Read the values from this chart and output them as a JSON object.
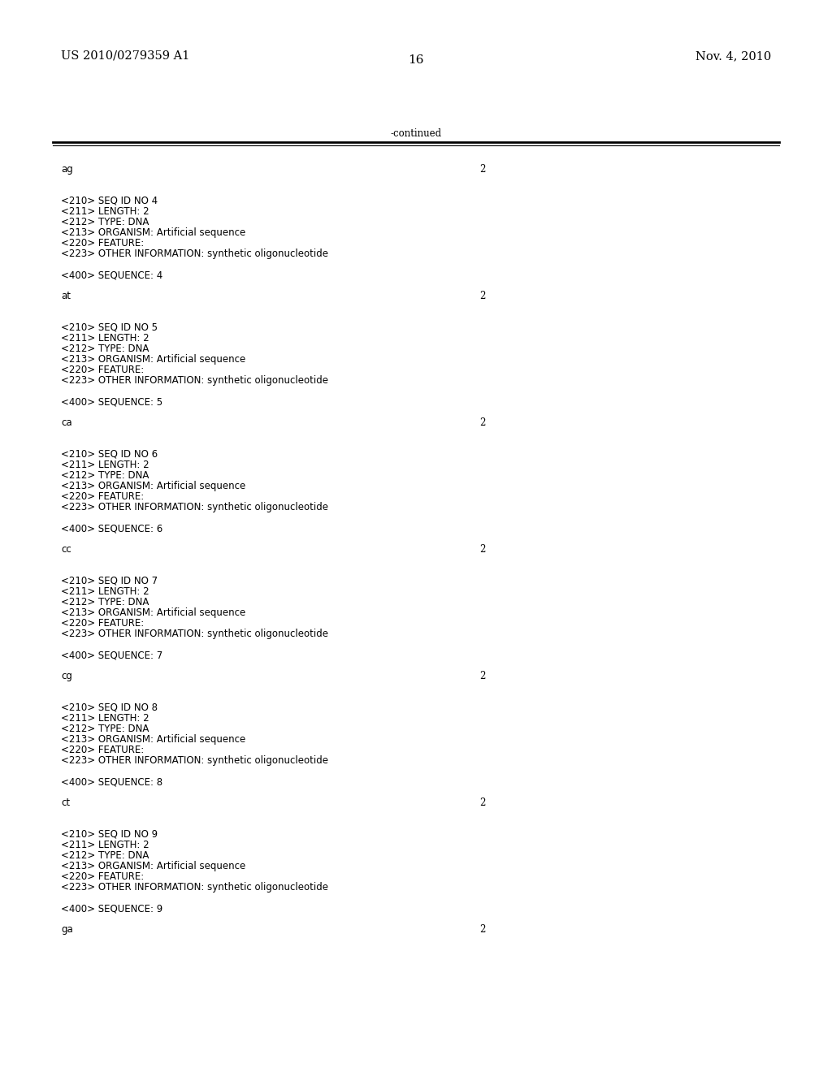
{
  "header_left": "US 2010/0279359 A1",
  "header_right": "Nov. 4, 2010",
  "page_number": "16",
  "continued_label": "-continued",
  "background_color": "#ffffff",
  "text_color": "#000000",
  "font_size_header": 10.5,
  "font_size_body": 8.5,
  "font_size_page": 11,
  "content": [
    {
      "text": "ag",
      "type": "sequence",
      "num": "2"
    },
    {
      "text": "",
      "type": "blank"
    },
    {
      "text": "",
      "type": "blank"
    },
    {
      "text": "<210> SEQ ID NO 4",
      "type": "meta"
    },
    {
      "text": "<211> LENGTH: 2",
      "type": "meta"
    },
    {
      "text": "<212> TYPE: DNA",
      "type": "meta"
    },
    {
      "text": "<213> ORGANISM: Artificial sequence",
      "type": "meta"
    },
    {
      "text": "<220> FEATURE:",
      "type": "meta"
    },
    {
      "text": "<223> OTHER INFORMATION: synthetic oligonucleotide",
      "type": "meta"
    },
    {
      "text": "",
      "type": "blank"
    },
    {
      "text": "<400> SEQUENCE: 4",
      "type": "meta"
    },
    {
      "text": "",
      "type": "blank"
    },
    {
      "text": "at",
      "type": "sequence",
      "num": "2"
    },
    {
      "text": "",
      "type": "blank"
    },
    {
      "text": "",
      "type": "blank"
    },
    {
      "text": "<210> SEQ ID NO 5",
      "type": "meta"
    },
    {
      "text": "<211> LENGTH: 2",
      "type": "meta"
    },
    {
      "text": "<212> TYPE: DNA",
      "type": "meta"
    },
    {
      "text": "<213> ORGANISM: Artificial sequence",
      "type": "meta"
    },
    {
      "text": "<220> FEATURE:",
      "type": "meta"
    },
    {
      "text": "<223> OTHER INFORMATION: synthetic oligonucleotide",
      "type": "meta"
    },
    {
      "text": "",
      "type": "blank"
    },
    {
      "text": "<400> SEQUENCE: 5",
      "type": "meta"
    },
    {
      "text": "",
      "type": "blank"
    },
    {
      "text": "ca",
      "type": "sequence",
      "num": "2"
    },
    {
      "text": "",
      "type": "blank"
    },
    {
      "text": "",
      "type": "blank"
    },
    {
      "text": "<210> SEQ ID NO 6",
      "type": "meta"
    },
    {
      "text": "<211> LENGTH: 2",
      "type": "meta"
    },
    {
      "text": "<212> TYPE: DNA",
      "type": "meta"
    },
    {
      "text": "<213> ORGANISM: Artificial sequence",
      "type": "meta"
    },
    {
      "text": "<220> FEATURE:",
      "type": "meta"
    },
    {
      "text": "<223> OTHER INFORMATION: synthetic oligonucleotide",
      "type": "meta"
    },
    {
      "text": "",
      "type": "blank"
    },
    {
      "text": "<400> SEQUENCE: 6",
      "type": "meta"
    },
    {
      "text": "",
      "type": "blank"
    },
    {
      "text": "cc",
      "type": "sequence",
      "num": "2"
    },
    {
      "text": "",
      "type": "blank"
    },
    {
      "text": "",
      "type": "blank"
    },
    {
      "text": "<210> SEQ ID NO 7",
      "type": "meta"
    },
    {
      "text": "<211> LENGTH: 2",
      "type": "meta"
    },
    {
      "text": "<212> TYPE: DNA",
      "type": "meta"
    },
    {
      "text": "<213> ORGANISM: Artificial sequence",
      "type": "meta"
    },
    {
      "text": "<220> FEATURE:",
      "type": "meta"
    },
    {
      "text": "<223> OTHER INFORMATION: synthetic oligonucleotide",
      "type": "meta"
    },
    {
      "text": "",
      "type": "blank"
    },
    {
      "text": "<400> SEQUENCE: 7",
      "type": "meta"
    },
    {
      "text": "",
      "type": "blank"
    },
    {
      "text": "cg",
      "type": "sequence",
      "num": "2"
    },
    {
      "text": "",
      "type": "blank"
    },
    {
      "text": "",
      "type": "blank"
    },
    {
      "text": "<210> SEQ ID NO 8",
      "type": "meta"
    },
    {
      "text": "<211> LENGTH: 2",
      "type": "meta"
    },
    {
      "text": "<212> TYPE: DNA",
      "type": "meta"
    },
    {
      "text": "<213> ORGANISM: Artificial sequence",
      "type": "meta"
    },
    {
      "text": "<220> FEATURE:",
      "type": "meta"
    },
    {
      "text": "<223> OTHER INFORMATION: synthetic oligonucleotide",
      "type": "meta"
    },
    {
      "text": "",
      "type": "blank"
    },
    {
      "text": "<400> SEQUENCE: 8",
      "type": "meta"
    },
    {
      "text": "",
      "type": "blank"
    },
    {
      "text": "ct",
      "type": "sequence",
      "num": "2"
    },
    {
      "text": "",
      "type": "blank"
    },
    {
      "text": "",
      "type": "blank"
    },
    {
      "text": "<210> SEQ ID NO 9",
      "type": "meta"
    },
    {
      "text": "<211> LENGTH: 2",
      "type": "meta"
    },
    {
      "text": "<212> TYPE: DNA",
      "type": "meta"
    },
    {
      "text": "<213> ORGANISM: Artificial sequence",
      "type": "meta"
    },
    {
      "text": "<220> FEATURE:",
      "type": "meta"
    },
    {
      "text": "<223> OTHER INFORMATION: synthetic oligonucleotide",
      "type": "meta"
    },
    {
      "text": "",
      "type": "blank"
    },
    {
      "text": "<400> SEQUENCE: 9",
      "type": "meta"
    },
    {
      "text": "",
      "type": "blank"
    },
    {
      "text": "ga",
      "type": "sequence",
      "num": "2"
    }
  ]
}
